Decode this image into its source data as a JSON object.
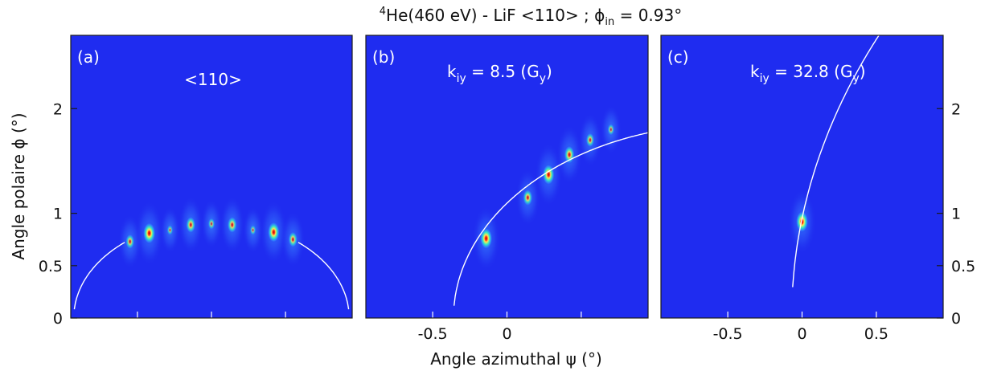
{
  "title": {
    "sup": "4",
    "main": "He(460 eV) - LiF <110> ; ",
    "phi": "ϕ",
    "sub": "in",
    "tail": " = 0.93°"
  },
  "xlabel": "Angle azimuthal ψ (°)",
  "ylabel": "Angle polaire ϕ (°)",
  "colors": {
    "background": "#1f2cf0",
    "spot_core": "#e81c10",
    "spot_mid": "#f5e35a",
    "spot_outer": "#38e6d0",
    "halo": "#2f63ff",
    "arc": "#ffffff"
  },
  "chart_data": [
    {
      "type": "heatmap",
      "panel_label": "(a)",
      "annotation": {
        "text": "<110>"
      },
      "xlim": [
        -0.95,
        0.95
      ],
      "ylim": [
        0,
        2.7
      ],
      "xticks": [],
      "yticks": [
        "0",
        "0.5",
        "1",
        "2"
      ],
      "y_axis_side": "left",
      "spots": [
        {
          "x": -0.55,
          "y": 0.73,
          "i": 0.55
        },
        {
          "x": -0.42,
          "y": 0.81,
          "i": 1.0
        },
        {
          "x": -0.28,
          "y": 0.84,
          "i": 0.2
        },
        {
          "x": -0.14,
          "y": 0.89,
          "i": 0.65
        },
        {
          "x": 0.0,
          "y": 0.9,
          "i": 0.3
        },
        {
          "x": 0.14,
          "y": 0.89,
          "i": 0.65
        },
        {
          "x": 0.28,
          "y": 0.84,
          "i": 0.2
        },
        {
          "x": 0.42,
          "y": 0.82,
          "i": 0.95
        },
        {
          "x": 0.55,
          "y": 0.75,
          "i": 0.6
        }
      ],
      "arc": {
        "radius_deg": 0.93,
        "center_x": 0.0,
        "hidden_range": [
          -0.58,
          0.58
        ]
      }
    },
    {
      "type": "heatmap",
      "panel_label": "(b)",
      "annotation": {
        "main": "k",
        "sub": "iy",
        "mid": " = 8.5 (G",
        "sub2": "y",
        "end": ")"
      },
      "xlim": [
        -0.95,
        0.95
      ],
      "ylim": [
        0,
        2.7
      ],
      "xticks": [
        "-0.5",
        "0"
      ],
      "yticks": [],
      "spots": [
        {
          "x": -0.14,
          "y": 0.76,
          "i": 1.0
        },
        {
          "x": 0.14,
          "y": 1.15,
          "i": 0.65
        },
        {
          "x": 0.28,
          "y": 1.37,
          "i": 0.95
        },
        {
          "x": 0.42,
          "y": 1.56,
          "i": 0.75
        },
        {
          "x": 0.56,
          "y": 1.7,
          "i": 0.5
        },
        {
          "x": 0.7,
          "y": 1.8,
          "i": 0.3
        }
      ],
      "arc": {
        "radius_deg": 1.85,
        "center_x": 1.49
      }
    },
    {
      "type": "heatmap",
      "panel_label": "(c)",
      "annotation": {
        "main": "k",
        "sub": "iy",
        "mid": " = 32.8 (G",
        "sub2": "y",
        "end": ")"
      },
      "xlim": [
        -0.95,
        0.95
      ],
      "ylim": [
        0,
        2.7
      ],
      "xticks": [
        "-0.5",
        "0",
        "0.5"
      ],
      "yticks": [
        "0",
        "0.5",
        "1",
        "2"
      ],
      "y_axis_side": "right",
      "spots": [
        {
          "x": 0.0,
          "y": 0.92,
          "i": 1.0
        }
      ],
      "arc": {
        "radius_deg": 6.5,
        "center_x": 6.43
      }
    }
  ]
}
